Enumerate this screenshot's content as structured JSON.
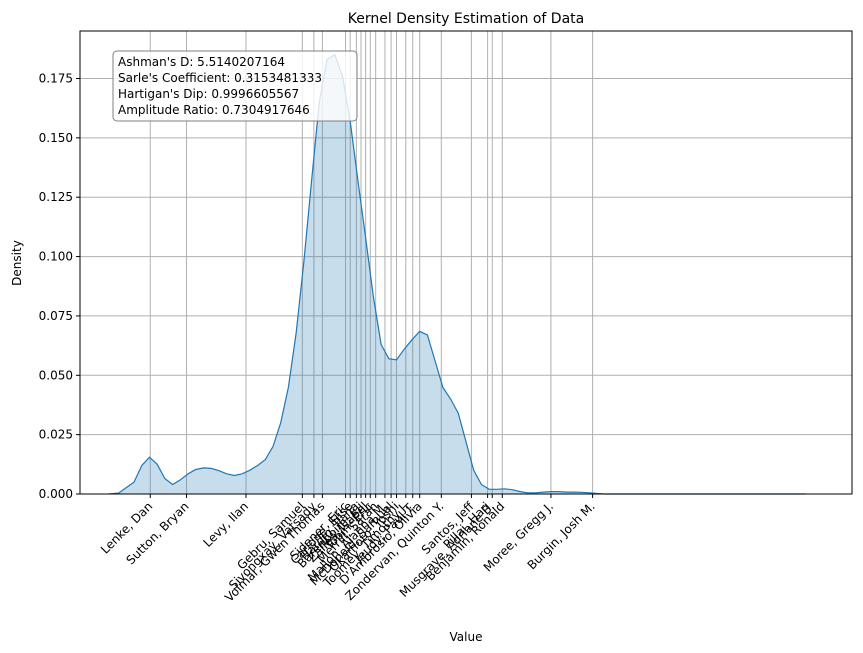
{
  "chart_data": {
    "type": "area",
    "title": "Kernel Density Estimation of Data",
    "xlabel": "Value",
    "ylabel": "Density",
    "xlim": [
      0,
      100
    ],
    "ylim": [
      0,
      0.195
    ],
    "yticks": [
      "0.000",
      "0.025",
      "0.050",
      "0.075",
      "0.100",
      "0.125",
      "0.150",
      "0.175"
    ],
    "grid": true,
    "colors": {
      "line": "#1f77b4",
      "fill": "#1f77b4",
      "grid": "#b0b0b0"
    },
    "stats_box": [
      "Ashman's D: 5.5140207164",
      "Sarle's Coefficient: 0.3153481333",
      "Hartigan's Dip: 0.9996605567",
      "Amplitude Ratio: 0.7304917646"
    ],
    "kde_curve": {
      "x": [
        3.7,
        5,
        7,
        8,
        9,
        10,
        11,
        12,
        13,
        14,
        15,
        16,
        17,
        18,
        19,
        20,
        21,
        22,
        23,
        24,
        25,
        26,
        27,
        28,
        29,
        30,
        31,
        32,
        33,
        34,
        35,
        36,
        37,
        38,
        39,
        40,
        41,
        42,
        43,
        44,
        45,
        46,
        47,
        48,
        49,
        50,
        51,
        52,
        53,
        54,
        55,
        56,
        57,
        58,
        59,
        60,
        61,
        62,
        63,
        64,
        65,
        66,
        67,
        68,
        69,
        70,
        71,
        72,
        73,
        74,
        75,
        76,
        77,
        78,
        79,
        80,
        81,
        82,
        84,
        86,
        88,
        90,
        92,
        94
      ],
      "y": [
        0,
        0.0004,
        0.005,
        0.012,
        0.0155,
        0.0125,
        0.0065,
        0.004,
        0.006,
        0.0085,
        0.0103,
        0.011,
        0.0108,
        0.0098,
        0.0085,
        0.0078,
        0.0085,
        0.01,
        0.012,
        0.0145,
        0.02,
        0.03,
        0.045,
        0.068,
        0.098,
        0.132,
        0.165,
        0.183,
        0.185,
        0.176,
        0.157,
        0.132,
        0.108,
        0.083,
        0.063,
        0.057,
        0.0565,
        0.061,
        0.065,
        0.0685,
        0.067,
        0.056,
        0.045,
        0.04,
        0.034,
        0.022,
        0.01,
        0.004,
        0.002,
        0.002,
        0.0022,
        0.0018,
        0.001,
        0.0005,
        0.0005,
        0.0008,
        0.001,
        0.001,
        0.0008,
        0.0008,
        0.0007,
        0.0005,
        0.0002,
        0,
        0,
        0,
        0,
        0,
        0,
        0,
        0,
        0,
        0,
        0,
        0,
        0,
        0,
        0,
        0,
        0,
        0,
        0,
        0,
        0
      ]
    },
    "markers": [
      {
        "name": "Lenke, Dan",
        "x": 9.1
      },
      {
        "name": "Sutton, Bryan",
        "x": 13.8
      },
      {
        "name": "Levy, Ilan",
        "x": 21.5
      },
      {
        "name": "Gebru, Samuel",
        "x": 28.8
      },
      {
        "name": "Sivongxay, Vatsady",
        "x": 30.3
      },
      {
        "name": "Volmar, Gwen Thomas",
        "x": 31.4
      },
      {
        "name": "Sidener, Eric",
        "x": 34.4
      },
      {
        "name": "Carlone, Elise",
        "x": 35.0
      },
      {
        "name": "Hardin, Ilana",
        "x": 35.8
      },
      {
        "name": "Barenboim, Eli",
        "x": 36.4
      },
      {
        "name": "Zalles, Isabel",
        "x": 37.0
      },
      {
        "name": "Tobin, Eric",
        "x": 37.6
      },
      {
        "name": "Merrill, Sarah",
        "x": 38.3
      },
      {
        "name": "Mallon, Alanna M.",
        "x": 39.5
      },
      {
        "name": "McDonald, Samuel",
        "x": 40.3
      },
      {
        "name": "Okamoto, Yoshi",
        "x": 41.0
      },
      {
        "name": "Toomey, Timothy J.",
        "x": 42.2
      },
      {
        "name": "Jeudy, Paul T.",
        "x": 43.1
      },
      {
        "name": "D'Ambrosio, Olivia",
        "x": 44.0
      },
      {
        "name": "Zondervan, Quinton Y.",
        "x": 46.8
      },
      {
        "name": "Santos, Jeff",
        "x": 50.7
      },
      {
        "name": "Pillai, Hari",
        "x": 52.8
      },
      {
        "name": "Musgrave, Adriane B.",
        "x": 53.4
      },
      {
        "name": "Benjamin, Ronald",
        "x": 54.7
      },
      {
        "name": "Moree, Gregg J.",
        "x": 61.0
      },
      {
        "name": "Burgin, Josh M.",
        "x": 66.4
      }
    ]
  }
}
